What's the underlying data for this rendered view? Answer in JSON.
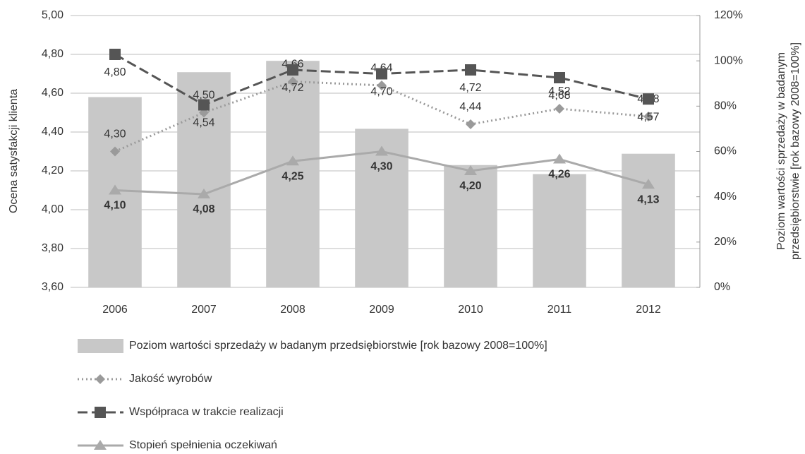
{
  "chart_data": {
    "type": "bar-line",
    "y_label": "Ocena satysfakcji klienta",
    "y2_label": [
      "Poziom wartości sprzedaży w badanym",
      "przedsiębiorstwie [rok bazowy 2008=100%]"
    ],
    "categories": [
      "2006",
      "2007",
      "2008",
      "2009",
      "2010",
      "2011",
      "2012"
    ],
    "ylim": [
      3.6,
      5.0
    ],
    "yticks": [
      {
        "value": 3.6,
        "label": "3,60"
      },
      {
        "value": 3.8,
        "label": "3,80"
      },
      {
        "value": 4.0,
        "label": "4,00"
      },
      {
        "value": 4.2,
        "label": "4,20"
      },
      {
        "value": 4.4,
        "label": "4,40"
      },
      {
        "value": 4.6,
        "label": "4,60"
      },
      {
        "value": 4.8,
        "label": "4,80"
      },
      {
        "value": 5.0,
        "label": "5,00"
      }
    ],
    "y2lim": [
      0,
      120
    ],
    "y2ticks": [
      {
        "value": 0,
        "label": "0%"
      },
      {
        "value": 20,
        "label": "20%"
      },
      {
        "value": 40,
        "label": "40%"
      },
      {
        "value": 60,
        "label": "60%"
      },
      {
        "value": 80,
        "label": "80%"
      },
      {
        "value": 100,
        "label": "100%"
      },
      {
        "value": 120,
        "label": "120%"
      }
    ],
    "grid": true,
    "series": [
      {
        "name": "Poziom wartości sprzedaży w badanym przedsiębiorstwie [rok bazowy 2008=100%]",
        "type": "bar",
        "axis": "y2",
        "color": "#c8c8c8",
        "values": [
          84,
          95,
          100,
          70,
          54,
          50,
          59
        ]
      },
      {
        "name": "Jakość wyrobów",
        "type": "line",
        "style": "dotted",
        "marker": "diamond",
        "color": "#9a9a9a",
        "values": [
          4.3,
          4.5,
          4.66,
          4.64,
          4.44,
          4.52,
          4.48
        ],
        "value_labels": [
          "4,30",
          "4,50",
          "4,66",
          "4,64",
          "4,44",
          "4,52",
          "4,48"
        ]
      },
      {
        "name": "Współpraca w trakcie realizacji",
        "type": "line",
        "style": "dashed",
        "marker": "square",
        "color": "#555555",
        "values": [
          4.8,
          4.54,
          4.72,
          4.7,
          4.72,
          4.68,
          4.57
        ],
        "value_labels": [
          "4,80",
          "4,54",
          "4,72",
          "4,70",
          "4,72",
          "4,68",
          "4,57"
        ]
      },
      {
        "name": "Stopień spełnienia oczekiwań",
        "type": "line",
        "style": "solid",
        "marker": "triangle",
        "color": "#aaaaaa",
        "values": [
          4.1,
          4.08,
          4.25,
          4.3,
          4.2,
          4.26,
          4.13
        ],
        "value_labels": [
          "4,10",
          "4,08",
          "4,25",
          "4,30",
          "4,20",
          "4,26",
          "4,13"
        ]
      }
    ]
  }
}
